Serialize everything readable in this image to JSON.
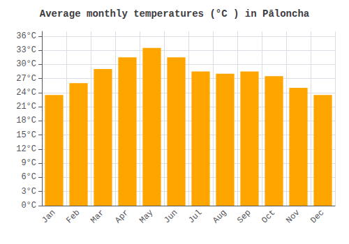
{
  "chart_data": {
    "type": "bar",
    "title": "Average monthly temperatures (°C ) in Pāloncha",
    "categories": [
      "Jan",
      "Feb",
      "Mar",
      "Apr",
      "May",
      "Jun",
      "Jul",
      "Aug",
      "Sep",
      "Oct",
      "Nov",
      "Dec"
    ],
    "values": [
      23.5,
      26.0,
      29.0,
      31.5,
      33.5,
      31.5,
      28.5,
      28.0,
      28.5,
      27.5,
      25.0,
      23.5
    ],
    "color": "#FFA500",
    "ylim": [
      0,
      37
    ],
    "yticks": [
      {
        "value": 0,
        "label": "0°C"
      },
      {
        "value": 3,
        "label": "3°C"
      },
      {
        "value": 6,
        "label": "6°C"
      },
      {
        "value": 9,
        "label": "9°C"
      },
      {
        "value": 12,
        "label": "12°C"
      },
      {
        "value": 15,
        "label": "15°C"
      },
      {
        "value": 18,
        "label": "18°C"
      },
      {
        "value": 21,
        "label": "21°C"
      },
      {
        "value": 24,
        "label": "24°C"
      },
      {
        "value": 27,
        "label": "27°C"
      },
      {
        "value": 30,
        "label": "30°C"
      },
      {
        "value": 33,
        "label": "33°C"
      },
      {
        "value": 36,
        "label": "36°C"
      }
    ],
    "grid": true
  }
}
